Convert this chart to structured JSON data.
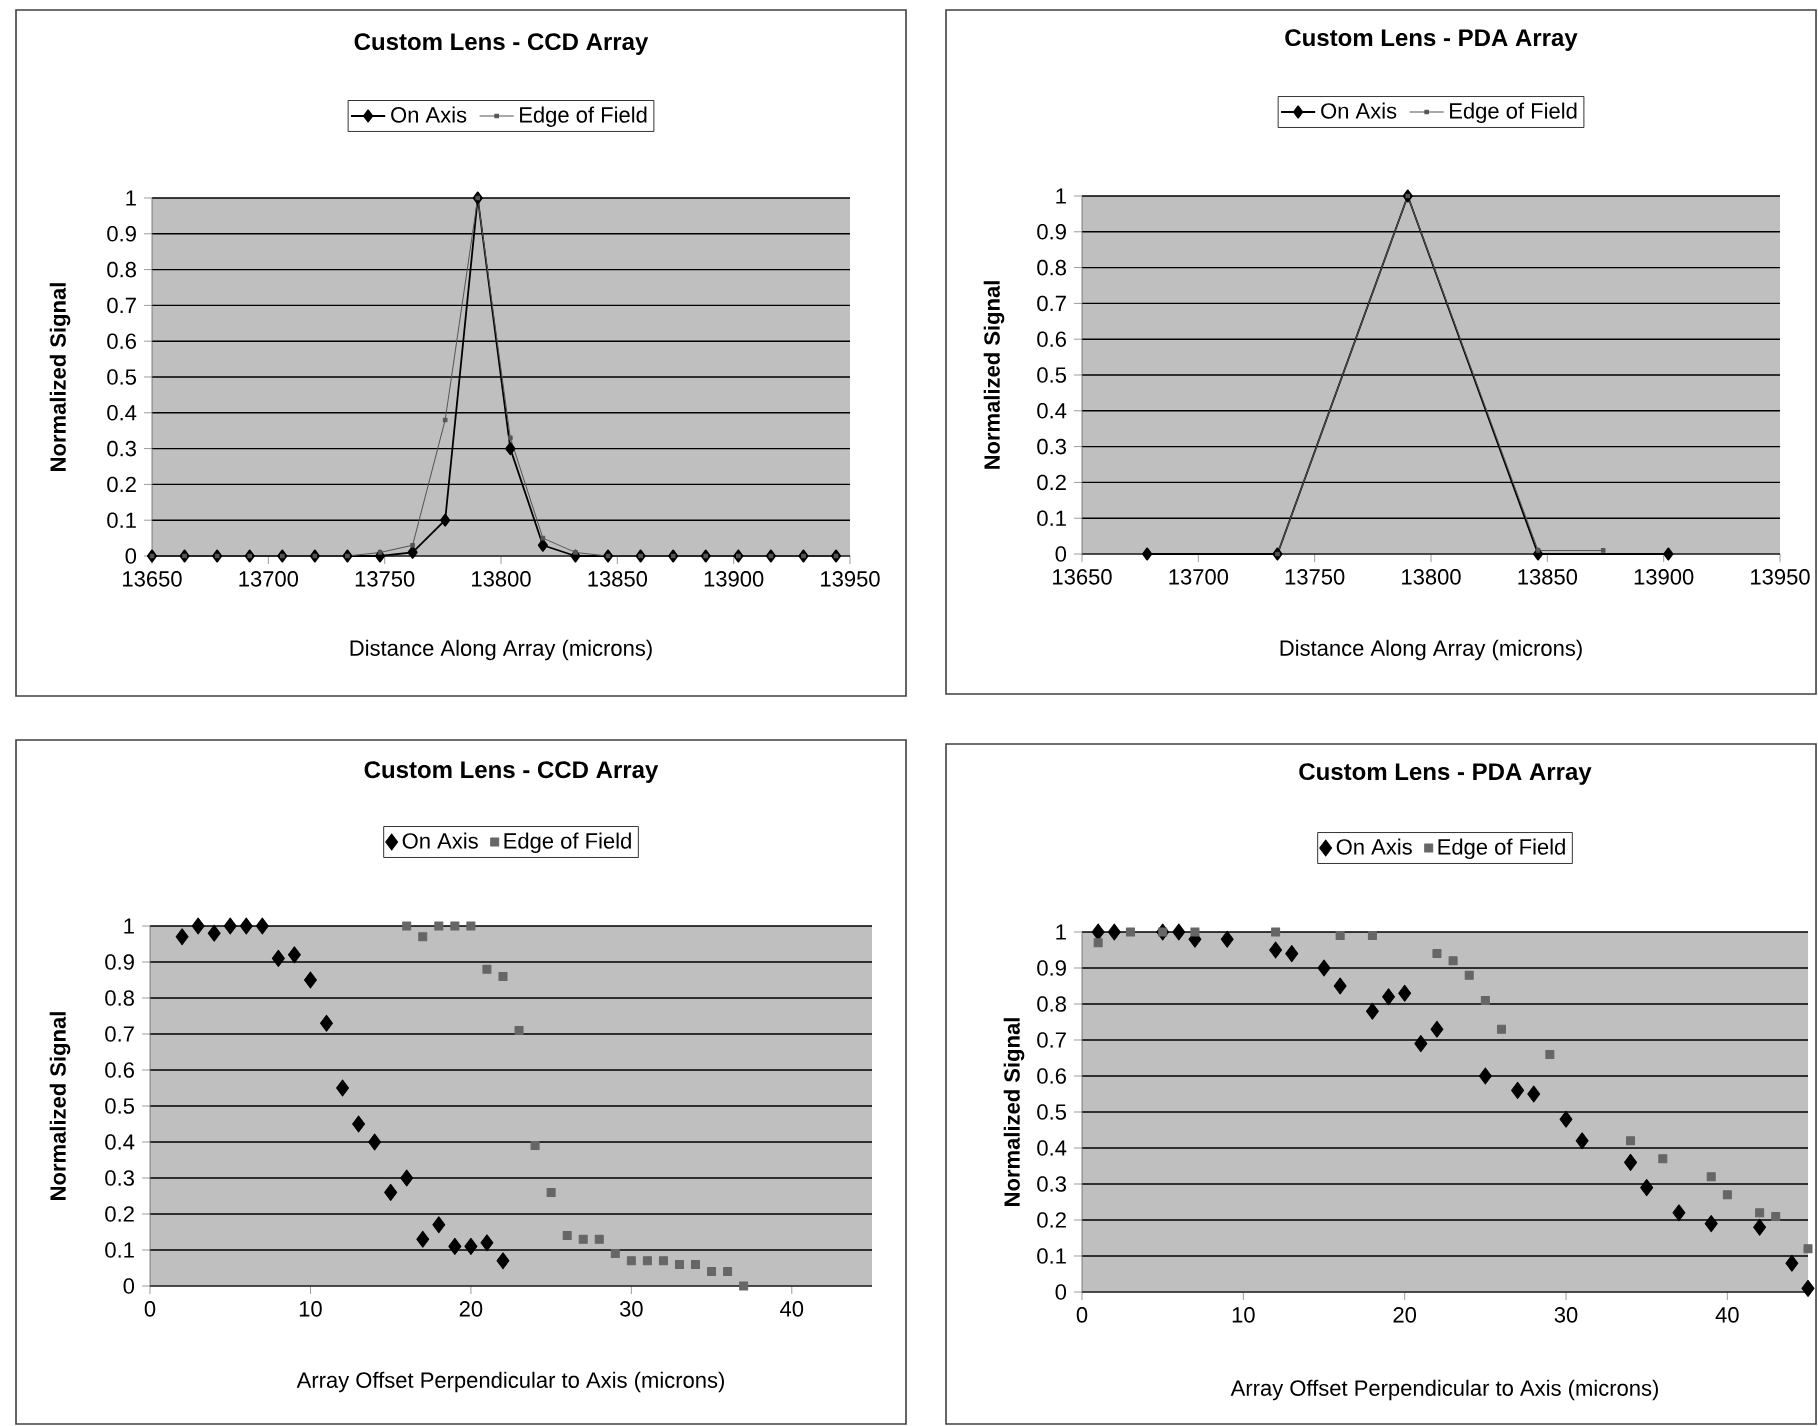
{
  "chart_data": [
    {
      "type": "line",
      "title": "Custom Lens - CCD Array",
      "xlabel": "Distance Along Array (microns)",
      "ylabel": "Normalized Signal",
      "xlim": [
        13650,
        13950
      ],
      "xticks": [
        13650,
        13700,
        13750,
        13800,
        13850,
        13900,
        13950
      ],
      "ylim": [
        0,
        1
      ],
      "yticks": [
        0,
        0.1,
        0.2,
        0.3,
        0.4,
        0.5,
        0.6,
        0.7,
        0.8,
        0.9,
        1
      ],
      "grid": "y",
      "legend": "top",
      "series": [
        {
          "name": "On Axis",
          "color": "#000000",
          "marker": "diamond",
          "x": [
            13650,
            13664,
            13678,
            13692,
            13706,
            13720,
            13734,
            13748,
            13762,
            13776,
            13790,
            13804,
            13818,
            13832,
            13846,
            13860,
            13874,
            13888,
            13902,
            13916,
            13930,
            13944
          ],
          "values": [
            0,
            0,
            0,
            0,
            0,
            0,
            0,
            0,
            0.01,
            0.1,
            1,
            0.3,
            0.03,
            0,
            0,
            0,
            0,
            0,
            0,
            0,
            0,
            0
          ]
        },
        {
          "name": "Edge of Field",
          "color": "#555555",
          "marker": "square",
          "x": [
            13650,
            13664,
            13678,
            13692,
            13706,
            13720,
            13734,
            13748,
            13762,
            13776,
            13790,
            13804,
            13818,
            13832,
            13846,
            13860,
            13874,
            13888,
            13902,
            13916,
            13930,
            13944
          ],
          "values": [
            0,
            0,
            0,
            0,
            0,
            0,
            0,
            0.01,
            0.03,
            0.38,
            1,
            0.33,
            0.05,
            0.01,
            0,
            0,
            0,
            0,
            0,
            0,
            0,
            0
          ]
        }
      ]
    },
    {
      "type": "line",
      "title": "Custom Lens - PDA Array",
      "xlabel": "Distance Along Array (microns)",
      "ylabel": "Normalized Signal",
      "xlim": [
        13650,
        13950
      ],
      "xticks": [
        13650,
        13700,
        13750,
        13800,
        13850,
        13900,
        13950
      ],
      "ylim": [
        0,
        1
      ],
      "yticks": [
        0,
        0.1,
        0.2,
        0.3,
        0.4,
        0.5,
        0.6,
        0.7,
        0.8,
        0.9,
        1
      ],
      "grid": "y",
      "legend": "top",
      "series": [
        {
          "name": "On Axis",
          "color": "#000000",
          "marker": "diamond",
          "x": [
            13678,
            13734,
            13790,
            13846,
            13902
          ],
          "values": [
            0,
            0,
            1,
            0,
            0
          ]
        },
        {
          "name": "Edge of Field",
          "color": "#555555",
          "marker": "square",
          "x": [
            13734,
            13790,
            13846,
            13874
          ],
          "values": [
            0,
            1,
            0.01,
            0.01
          ]
        }
      ]
    },
    {
      "type": "scatter",
      "title": "Custom Lens - CCD Array",
      "xlabel": "Array Offset Perpendicular to Axis (microns)",
      "ylabel": "Normalized Signal",
      "xlim": [
        0,
        45
      ],
      "xticks": [
        0,
        10,
        20,
        30,
        40
      ],
      "ylim": [
        0,
        1
      ],
      "yticks": [
        0,
        0.1,
        0.2,
        0.3,
        0.4,
        0.5,
        0.6,
        0.7,
        0.8,
        0.9,
        1
      ],
      "grid": "y",
      "legend": "top",
      "series": [
        {
          "name": "On Axis",
          "color": "#000000",
          "marker": "diamond",
          "x": [
            2,
            3,
            4,
            5,
            6,
            7,
            8,
            9,
            10,
            11,
            12,
            13,
            14,
            15,
            16,
            17,
            18,
            19,
            20,
            21,
            22
          ],
          "values": [
            0.97,
            1,
            0.98,
            1,
            1,
            1,
            0.91,
            0.92,
            0.85,
            0.73,
            0.55,
            0.45,
            0.4,
            0.26,
            0.3,
            0.13,
            0.17,
            0.11,
            0.11,
            0.12,
            0.07
          ]
        },
        {
          "name": "Edge of Field",
          "color": "#666666",
          "marker": "square",
          "x": [
            16,
            17,
            18,
            19,
            20,
            21,
            22,
            23,
            24,
            25,
            26,
            27,
            28,
            29,
            30,
            31,
            32,
            33,
            34,
            35,
            36,
            37
          ],
          "values": [
            1,
            0.97,
            1,
            1,
            1,
            0.88,
            0.86,
            0.71,
            0.39,
            0.26,
            0.14,
            0.13,
            0.13,
            0.09,
            0.07,
            0.07,
            0.07,
            0.06,
            0.06,
            0.04,
            0.04,
            0
          ]
        }
      ]
    },
    {
      "type": "scatter",
      "title": "Custom Lens - PDA Array",
      "xlabel": "Array Offset Perpendicular to Axis (microns)",
      "ylabel": "Normalized Signal",
      "xlim": [
        0,
        45
      ],
      "xticks": [
        0,
        10,
        20,
        30,
        40
      ],
      "ylim": [
        0,
        1
      ],
      "yticks": [
        0,
        0.1,
        0.2,
        0.3,
        0.4,
        0.5,
        0.6,
        0.7,
        0.8,
        0.9,
        1
      ],
      "grid": "y",
      "legend": "top",
      "series": [
        {
          "name": "On Axis",
          "color": "#000000",
          "marker": "diamond",
          "x": [
            1,
            2,
            5,
            6,
            7,
            9,
            12,
            13,
            15,
            16,
            18,
            19,
            20,
            21,
            22,
            25,
            27,
            28,
            30,
            31,
            34,
            35,
            37,
            39,
            42,
            44,
            45
          ],
          "values": [
            1,
            1,
            1,
            1,
            0.98,
            0.98,
            0.95,
            0.94,
            0.9,
            0.85,
            0.78,
            0.82,
            0.83,
            0.69,
            0.73,
            0.6,
            0.56,
            0.55,
            0.48,
            0.42,
            0.36,
            0.29,
            0.22,
            0.19,
            0.18,
            0.08,
            0.01
          ]
        },
        {
          "name": "Edge of Field",
          "color": "#666666",
          "marker": "square",
          "x": [
            1,
            3,
            5,
            7,
            12,
            16,
            18,
            22,
            23,
            24,
            25,
            26,
            29,
            34,
            36,
            39,
            40,
            42,
            43,
            45
          ],
          "values": [
            0.97,
            1,
            1,
            1,
            1,
            0.99,
            0.99,
            0.94,
            0.92,
            0.88,
            0.81,
            0.73,
            0.66,
            0.42,
            0.37,
            0.32,
            0.27,
            0.22,
            0.21,
            0.12
          ]
        }
      ]
    }
  ]
}
